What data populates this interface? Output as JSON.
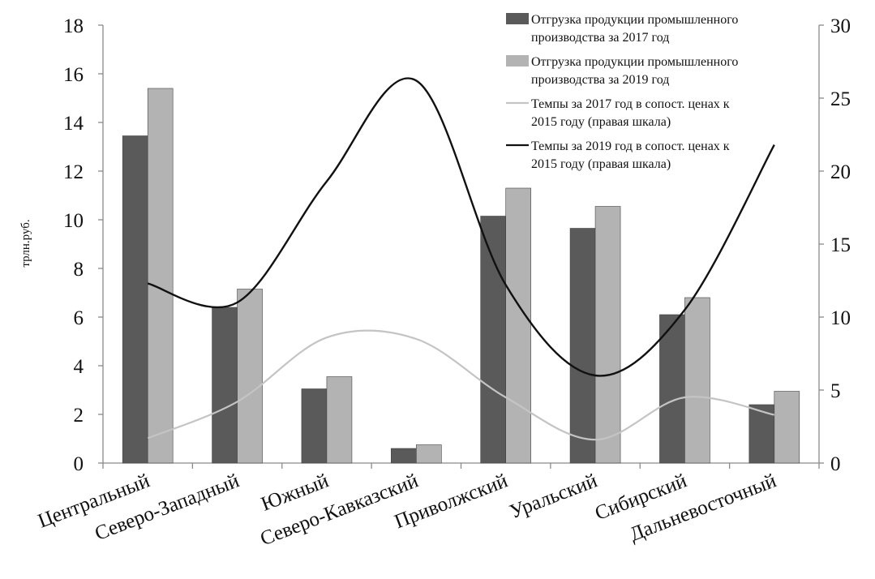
{
  "chart_data": {
    "type": "bar",
    "title": "",
    "xlabel": "",
    "ylabel": "трлн.руб.",
    "ylim": [
      0,
      18
    ],
    "y_ticks": [
      0,
      2,
      4,
      6,
      8,
      10,
      12,
      14,
      16,
      18
    ],
    "y2lim": [
      0,
      30
    ],
    "y2_ticks": [
      0,
      5,
      10,
      15,
      20,
      25,
      30
    ],
    "grid": false,
    "legend_position": "top-right",
    "categories": [
      "Центральный",
      "Северо-Западный",
      "Южный",
      "Северо-Кавказский",
      "Приволжский",
      "Уральский",
      "Сибирский",
      "Дальневосточный"
    ],
    "series": [
      {
        "name": "Отгрузка продукции промышленного производства за 2017 год",
        "type": "bar",
        "axis": "left",
        "color": "#5a5a5a",
        "values": [
          13.45,
          6.4,
          3.05,
          0.6,
          10.15,
          9.65,
          6.1,
          2.4
        ]
      },
      {
        "name": "Отгрузка продукции промышленного производства за 2019 год",
        "type": "bar",
        "axis": "left",
        "color": "#b3b3b3",
        "values": [
          15.4,
          7.15,
          3.55,
          0.75,
          11.3,
          10.55,
          6.8,
          2.95
        ]
      },
      {
        "name": "Темпы за 2017 год в сопост. ценах к 2015 году (правая шкала)",
        "type": "line",
        "axis": "right",
        "color": "#c4c4c4",
        "values": [
          1.7,
          4.2,
          8.6,
          8.5,
          4.5,
          1.6,
          4.5,
          3.3
        ]
      },
      {
        "name": "Темпы за 2019 год в сопост. ценах к 2015 году (правая шкала)",
        "type": "line",
        "axis": "right",
        "color": "#111111",
        "values": [
          12.3,
          11.0,
          19.3,
          26.2,
          12.2,
          6.0,
          10.5,
          21.8
        ]
      }
    ]
  }
}
